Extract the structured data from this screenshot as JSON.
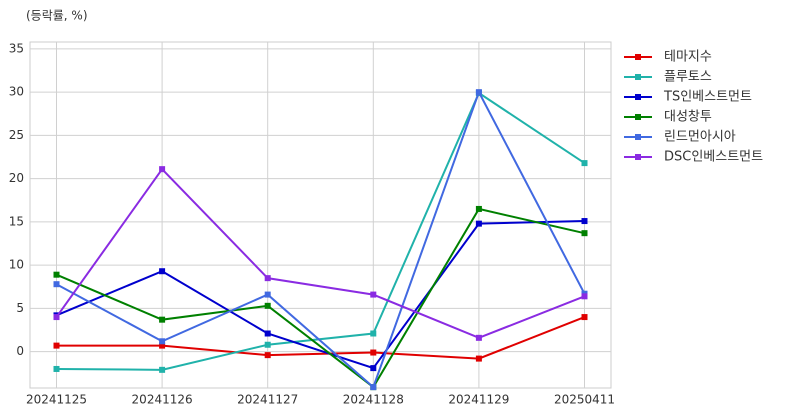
{
  "chart_data": {
    "type": "line",
    "title": "(등락률, %)",
    "categories": [
      "20241125",
      "20241126",
      "20241127",
      "20241128",
      "20241129",
      "20250411"
    ],
    "series": [
      {
        "name": "테마지수",
        "color": "#e00000",
        "values": [
          0.7,
          0.7,
          -0.4,
          -0.1,
          -0.8,
          4.0
        ]
      },
      {
        "name": "플루토스",
        "color": "#20b2aa",
        "values": [
          -2.0,
          -2.1,
          0.8,
          2.1,
          29.9,
          21.8
        ]
      },
      {
        "name": "TS인베스트먼트",
        "color": "#0000cd",
        "values": [
          4.2,
          9.3,
          2.1,
          -1.9,
          14.8,
          15.1
        ]
      },
      {
        "name": "대성창투",
        "color": "#008000",
        "values": [
          8.9,
          3.7,
          5.3,
          -4.1,
          16.5,
          13.7
        ]
      },
      {
        "name": "린드먼아시아",
        "color": "#4169e1",
        "values": [
          7.8,
          1.2,
          6.6,
          -4.1,
          30.0,
          6.7
        ]
      },
      {
        "name": "DSC인베스트먼트",
        "color": "#8a2be2",
        "values": [
          4.0,
          21.1,
          8.5,
          6.6,
          1.6,
          6.4
        ]
      }
    ],
    "ylim": [
      -4.2,
      35.8
    ],
    "yticks": [
      0,
      5,
      10,
      15,
      20,
      25,
      30,
      35
    ],
    "grid": true,
    "legend": "right"
  }
}
